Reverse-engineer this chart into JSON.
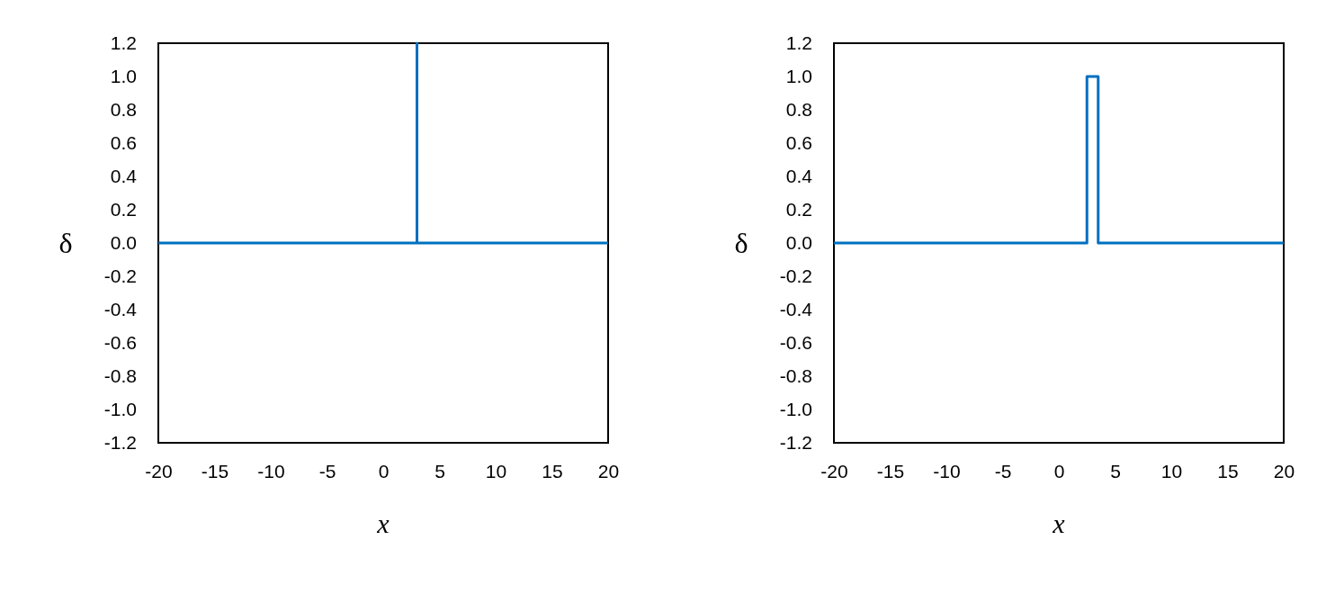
{
  "chart_data": [
    {
      "type": "line",
      "xlabel": "x",
      "ylabel": "δ",
      "x": [
        -20,
        3,
        3,
        3,
        20
      ],
      "series": [
        {
          "color": "#0070c0",
          "values": [
            0,
            0,
            1.2,
            0,
            0
          ]
        }
      ],
      "xlim": [
        -20,
        20
      ],
      "xticks": [
        -20,
        -15,
        -10,
        -5,
        0,
        5,
        10,
        15,
        20
      ],
      "ylim": [
        -1.2,
        1.2
      ],
      "yticks": [
        1.2,
        {
          "value": 1,
          "label": "1.0"
        },
        0.8,
        0.6,
        0.4,
        0.2,
        {
          "value": 0,
          "label": "0.0"
        },
        -0.2,
        -0.4,
        -0.6,
        -0.8,
        {
          "value": -1,
          "label": "-1.0"
        },
        -1.2
      ]
    },
    {
      "type": "line",
      "xlabel": "x",
      "ylabel": "δ",
      "x": [
        -20,
        2.5,
        2.5,
        3.5,
        3.5,
        20
      ],
      "series": [
        {
          "color": "#0070c0",
          "values": [
            0,
            0,
            1,
            1,
            0,
            0
          ]
        }
      ],
      "xlim": [
        -20,
        20
      ],
      "xticks": [
        -20,
        -15,
        -10,
        -5,
        0,
        5,
        10,
        15,
        20
      ],
      "ylim": [
        -1.2,
        1.2
      ],
      "yticks": [
        1.2,
        {
          "value": 1,
          "label": "1.0"
        },
        0.8,
        0.6,
        0.4,
        0.2,
        {
          "value": 0,
          "label": "0.0"
        },
        -0.2,
        -0.4,
        -0.6,
        -0.8,
        {
          "value": -1,
          "label": "-1.0"
        },
        -1.2
      ]
    }
  ]
}
